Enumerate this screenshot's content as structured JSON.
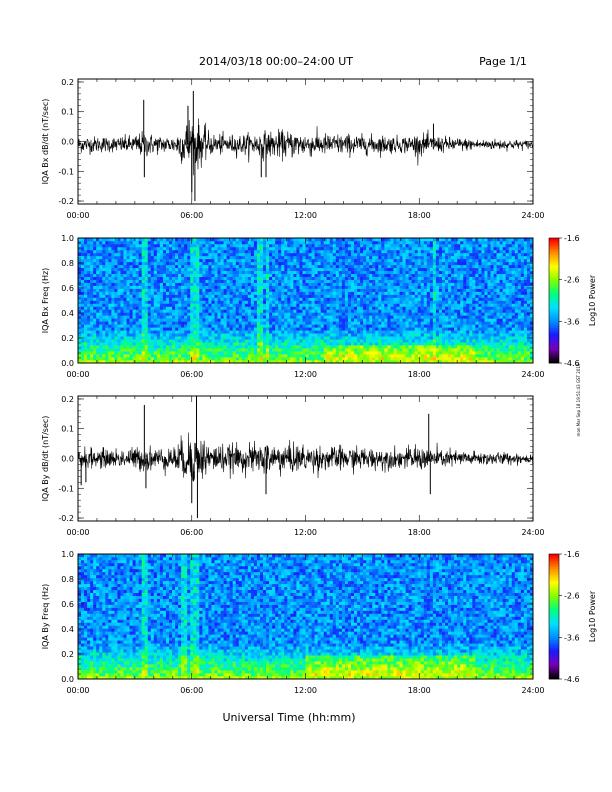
{
  "header": {
    "title": "2014/03/18  00:00–24:00 UT",
    "page": "Page 1/1"
  },
  "footer": {
    "xlabel": "Universal Time (hh:mm)",
    "stamp": "mon Mar Sep 18 19:51:43 GST 2019"
  },
  "colors": {
    "trace": "#000000",
    "colormap": [
      "#000000",
      "#7a00b8",
      "#1a1aff",
      "#0090ff",
      "#00e0ff",
      "#00ff80",
      "#80ff00",
      "#ffff00",
      "#ff9000",
      "#ff0000"
    ]
  },
  "chart_data": [
    {
      "type": "line",
      "ylabel": "IQA Bx dB/dt (nT/sec)",
      "x_ticks": [
        "00:00",
        "06:00",
        "12:00",
        "18:00",
        "24:00"
      ],
      "xlim": [
        "00:00",
        "24:00"
      ],
      "ylim": [
        -0.21,
        0.21
      ],
      "y_ticks": [
        "-0.2",
        "-0.1",
        "0.0",
        "0.1",
        "0.2"
      ],
      "baseline": -0.01,
      "envelope": {
        "hours": [
          0,
          1,
          2,
          3,
          3.5,
          4,
          5,
          5.5,
          6,
          6.3,
          7,
          8,
          9,
          10,
          11,
          12,
          13,
          14,
          15,
          16,
          17,
          18,
          19,
          20,
          21,
          22,
          23,
          24
        ],
        "amplitude": [
          0.03,
          0.03,
          0.028,
          0.035,
          0.05,
          0.035,
          0.03,
          0.07,
          0.12,
          0.09,
          0.04,
          0.035,
          0.04,
          0.05,
          0.05,
          0.045,
          0.04,
          0.04,
          0.035,
          0.035,
          0.03,
          0.04,
          0.03,
          0.025,
          0.02,
          0.02,
          0.018,
          0.015
        ]
      },
      "spikes": [
        {
          "time": "03:28",
          "value": 0.14
        },
        {
          "time": "03:30",
          "value": -0.12
        },
        {
          "time": "05:48",
          "value": 0.12
        },
        {
          "time": "06:00",
          "value": -0.17
        },
        {
          "time": "06:05",
          "value": 0.17
        },
        {
          "time": "06:10",
          "value": -0.2
        },
        {
          "time": "09:40",
          "value": -0.12
        },
        {
          "time": "09:55",
          "value": -0.12
        },
        {
          "time": "18:45",
          "value": 0.06
        }
      ]
    },
    {
      "type": "heatmap",
      "ylabel": "IQA Bx Freq (Hz)",
      "x_ticks": [
        "00:00",
        "06:00",
        "12:00",
        "18:00",
        "24:00"
      ],
      "xlim": [
        "00:00",
        "24:00"
      ],
      "ylim": [
        0.0,
        1.0
      ],
      "y_ticks": [
        "0.0",
        "0.2",
        "0.4",
        "0.6",
        "0.8",
        "1.0"
      ],
      "colorbar": {
        "label": "Log10 Power",
        "ticks": [
          "-1.6",
          "-2.6",
          "-3.6",
          "-4.6"
        ],
        "range": [
          -4.6,
          -1.6
        ]
      },
      "features": {
        "vertical_lines_hours": [
          3.5,
          6.0,
          6.2,
          9.6,
          10.0,
          18.8
        ],
        "enhanced_low_freq_band": {
          "from_hours": 13,
          "to_hours": 21,
          "max_freq": 0.15
        }
      }
    },
    {
      "type": "line",
      "ylabel": "IQA By dB/dt (nT/sec)",
      "x_ticks": [
        "00:00",
        "06:00",
        "12:00",
        "18:00",
        "24:00"
      ],
      "xlim": [
        "00:00",
        "24:00"
      ],
      "ylim": [
        -0.21,
        0.21
      ],
      "y_ticks": [
        "-0.2",
        "-0.1",
        "0.0",
        "0.1",
        "0.2"
      ],
      "baseline": 0.0,
      "envelope": {
        "hours": [
          0,
          1,
          2,
          3,
          3.5,
          4,
          5,
          5.5,
          6,
          6.3,
          7,
          8,
          9,
          10,
          11,
          12,
          13,
          14,
          15,
          16,
          17,
          18,
          19,
          20,
          21,
          22,
          23,
          24
        ],
        "amplitude": [
          0.04,
          0.035,
          0.035,
          0.04,
          0.05,
          0.04,
          0.045,
          0.07,
          0.1,
          0.09,
          0.055,
          0.05,
          0.05,
          0.06,
          0.055,
          0.05,
          0.045,
          0.045,
          0.04,
          0.04,
          0.035,
          0.045,
          0.035,
          0.03,
          0.025,
          0.025,
          0.02,
          0.02
        ]
      },
      "spikes": [
        {
          "time": "00:10",
          "value": -0.09
        },
        {
          "time": "00:25",
          "value": -0.08
        },
        {
          "time": "03:30",
          "value": 0.18
        },
        {
          "time": "03:35",
          "value": -0.1
        },
        {
          "time": "06:00",
          "value": -0.15
        },
        {
          "time": "06:15",
          "value": 0.21
        },
        {
          "time": "06:18",
          "value": -0.2
        },
        {
          "time": "09:55",
          "value": -0.12
        },
        {
          "time": "18:30",
          "value": 0.15
        },
        {
          "time": "18:35",
          "value": -0.12
        }
      ]
    },
    {
      "type": "heatmap",
      "ylabel": "IQA By Freq (Hz)",
      "x_ticks": [
        "00:00",
        "06:00",
        "12:00",
        "18:00",
        "24:00"
      ],
      "xlim": [
        "00:00",
        "24:00"
      ],
      "ylim": [
        0.0,
        1.0
      ],
      "y_ticks": [
        "0.0",
        "0.2",
        "0.4",
        "0.6",
        "0.8",
        "1.0"
      ],
      "colorbar": {
        "label": "Log10 Power",
        "ticks": [
          "-1.6",
          "-2.6",
          "-3.6",
          "-4.6"
        ],
        "range": [
          -4.6,
          -1.6
        ]
      },
      "features": {
        "vertical_lines_hours": [
          3.5,
          5.6,
          6.0,
          6.2
        ],
        "enhanced_low_freq_band": {
          "from_hours": 12,
          "to_hours": 21,
          "max_freq": 0.2
        }
      }
    }
  ]
}
